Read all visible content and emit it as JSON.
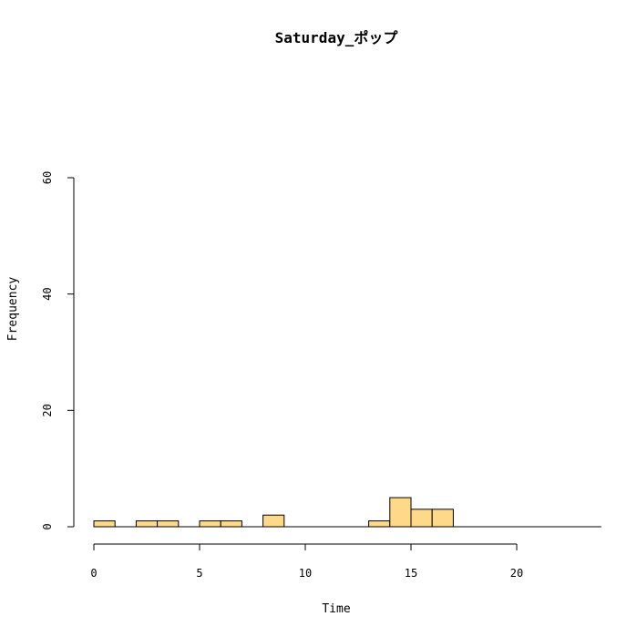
{
  "chart_data": {
    "type": "bar",
    "title": "Saturday_ポップ",
    "xlabel": "Time",
    "ylabel": "Frequency",
    "bin_width": 1,
    "xlim": [
      0,
      24
    ],
    "ylim": [
      0,
      60
    ],
    "x_ticks": [
      0,
      5,
      10,
      15,
      20
    ],
    "y_ticks": [
      0,
      20,
      40,
      60
    ],
    "bins": [
      {
        "start": 0,
        "end": 1,
        "count": 1
      },
      {
        "start": 1,
        "end": 2,
        "count": 0
      },
      {
        "start": 2,
        "end": 3,
        "count": 1
      },
      {
        "start": 3,
        "end": 4,
        "count": 1
      },
      {
        "start": 4,
        "end": 5,
        "count": 0
      },
      {
        "start": 5,
        "end": 6,
        "count": 1
      },
      {
        "start": 6,
        "end": 7,
        "count": 1
      },
      {
        "start": 7,
        "end": 8,
        "count": 0
      },
      {
        "start": 8,
        "end": 9,
        "count": 2
      },
      {
        "start": 9,
        "end": 10,
        "count": 0
      },
      {
        "start": 10,
        "end": 11,
        "count": 0
      },
      {
        "start": 11,
        "end": 12,
        "count": 0
      },
      {
        "start": 12,
        "end": 13,
        "count": 0
      },
      {
        "start": 13,
        "end": 14,
        "count": 1
      },
      {
        "start": 14,
        "end": 15,
        "count": 5
      },
      {
        "start": 15,
        "end": 16,
        "count": 3
      },
      {
        "start": 16,
        "end": 17,
        "count": 3
      },
      {
        "start": 17,
        "end": 18,
        "count": 0
      },
      {
        "start": 18,
        "end": 19,
        "count": 0
      },
      {
        "start": 19,
        "end": 20,
        "count": 0
      },
      {
        "start": 20,
        "end": 21,
        "count": 0
      },
      {
        "start": 21,
        "end": 22,
        "count": 0
      },
      {
        "start": 22,
        "end": 23,
        "count": 0
      },
      {
        "start": 23,
        "end": 24,
        "count": 0
      }
    ],
    "bar_color": "#FFD98A",
    "grid": false,
    "legend": "none"
  }
}
